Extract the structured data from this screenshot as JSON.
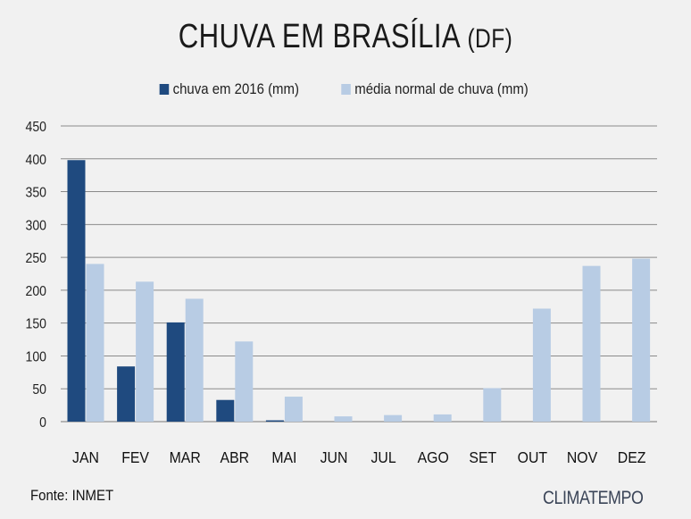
{
  "chart_data": {
    "type": "bar",
    "title": "CHUVA EM BRASÍLIA",
    "title_suffix": "(DF)",
    "xlabel": "",
    "ylabel": "",
    "ylim": [
      0,
      450
    ],
    "yticks": [
      0,
      50,
      100,
      150,
      200,
      250,
      300,
      350,
      400,
      450
    ],
    "grid": true,
    "legend_position": "top-center",
    "categories": [
      "JAN",
      "FEV",
      "MAR",
      "ABR",
      "MAI",
      "JUN",
      "JUL",
      "AGO",
      "SET",
      "OUT",
      "NOV",
      "DEZ"
    ],
    "series": [
      {
        "name": "chuva em 2016 (mm)",
        "color": "#1f4a7f",
        "values": [
          398,
          84,
          151,
          33,
          2,
          0,
          0,
          0,
          0,
          0,
          0,
          0
        ]
      },
      {
        "name": "média normal de chuva (mm)",
        "color": "#b8cce4",
        "values": [
          240,
          213,
          187,
          122,
          38,
          8,
          10,
          11,
          51,
          172,
          237,
          248
        ]
      }
    ]
  },
  "footer": {
    "source": "Fonte: INMET",
    "brand": "CLIMATEMPO"
  }
}
